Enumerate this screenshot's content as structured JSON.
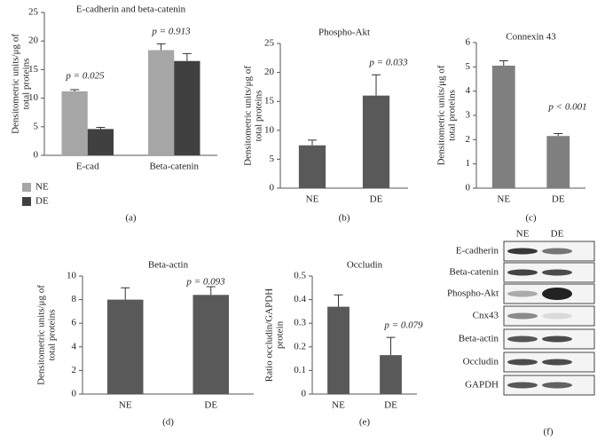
{
  "chart_data": [
    {
      "type": "bar",
      "title": "E-cadherin and beta-catenin",
      "ylabel": [
        "Densitometric units/μg of",
        "total proteins"
      ],
      "categories": [
        "E-cad",
        "Beta-catenin"
      ],
      "series": [
        {
          "name": "NE",
          "color": "#a6a6a6",
          "values": [
            11.2,
            18.4
          ],
          "errors": [
            0.3,
            1.1
          ]
        },
        {
          "name": "DE",
          "color": "#404040",
          "values": [
            4.6,
            16.5
          ],
          "errors": [
            0.3,
            1.3
          ]
        }
      ],
      "ylim": [
        0,
        25
      ],
      "yticks": [
        0,
        5,
        10,
        15,
        20,
        25
      ],
      "annotations": [
        "p = 0.025",
        "p = 0.913"
      ],
      "panel": "(a)"
    },
    {
      "type": "bar",
      "title": "Phospho-Akt",
      "ylabel": [
        "Densitometric units/μg of",
        "total proteins"
      ],
      "categories": [
        "NE",
        "DE"
      ],
      "values": [
        7.4,
        16.0
      ],
      "errors": [
        0.9,
        3.6
      ],
      "color": "#595959",
      "ylim": [
        0,
        25
      ],
      "yticks": [
        0,
        5,
        10,
        15,
        20,
        25
      ],
      "annotations": [
        "p = 0.033"
      ],
      "panel": "(b)"
    },
    {
      "type": "bar",
      "title": "Connexin 43",
      "ylabel": [
        "Densitometric units/μg of",
        "total proteins"
      ],
      "categories": [
        "NE",
        "DE"
      ],
      "values": [
        5.05,
        2.15
      ],
      "errors": [
        0.2,
        0.1
      ],
      "color": "#7f7f7f",
      "ylim": [
        0,
        6
      ],
      "yticks": [
        0,
        1,
        2,
        3,
        4,
        5,
        6
      ],
      "annotations": [
        "p < 0.001"
      ],
      "panel": "(c)"
    },
    {
      "type": "bar",
      "title": "Beta-actin",
      "ylabel": [
        "Densitometric units/μg of",
        "total proteins"
      ],
      "categories": [
        "NE",
        "DE"
      ],
      "values": [
        8.0,
        8.4
      ],
      "errors": [
        1.0,
        0.7
      ],
      "color": "#595959",
      "ylim": [
        0,
        10
      ],
      "yticks": [
        0,
        2,
        4,
        6,
        8,
        10
      ],
      "annotations": [
        "p = 0.093"
      ],
      "panel": "(d)"
    },
    {
      "type": "bar",
      "title": "Occludin",
      "ylabel": [
        "Ratio occludin/GAPDH",
        "protein"
      ],
      "categories": [
        "NE",
        "DE"
      ],
      "values": [
        0.37,
        0.165
      ],
      "errors": [
        0.05,
        0.075
      ],
      "color": "#595959",
      "ylim": [
        0,
        0.5
      ],
      "yticks": [
        0,
        0.1,
        0.2,
        0.3,
        0.4,
        0.5
      ],
      "annotations": [
        "p = 0.079"
      ],
      "panel": "(e)"
    }
  ],
  "blot": {
    "lanes": [
      "NE",
      "DE"
    ],
    "rows": [
      "E-cadherin",
      "Beta-catenin",
      "Phospho-Akt",
      "Cnx43",
      "Beta-actin",
      "Occludin",
      "GAPDH"
    ],
    "panel": "(f)"
  }
}
